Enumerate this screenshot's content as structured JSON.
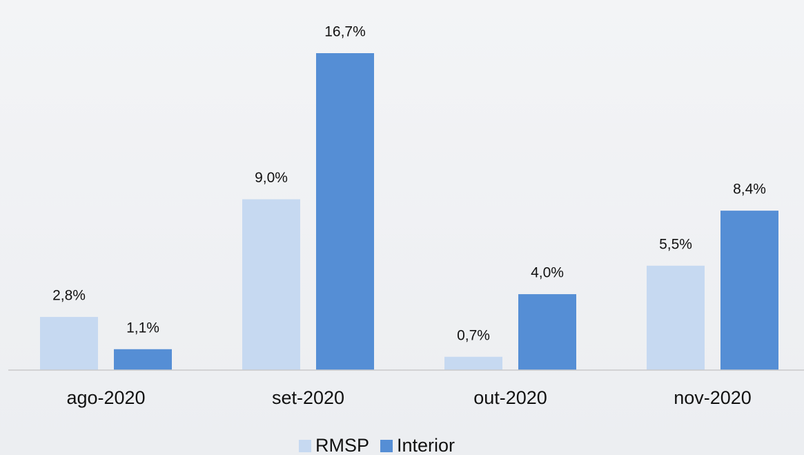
{
  "chart_data": {
    "type": "bar",
    "categories": [
      "ago-2020",
      "set-2020",
      "out-2020",
      "nov-2020"
    ],
    "series": [
      {
        "name": "RMSP",
        "color": "#c6d9f1",
        "values": [
          2.8,
          9.0,
          0.7,
          5.5
        ],
        "value_labels": [
          "2,8%",
          "9,0%",
          "0,7%",
          "5,5%"
        ]
      },
      {
        "name": "Interior",
        "color": "#558ed5",
        "values": [
          1.1,
          16.7,
          4.0,
          8.4
        ],
        "value_labels": [
          "1,1%",
          "16,7%",
          "4,0%",
          "8,4%"
        ]
      }
    ],
    "legend": "bottom"
  }
}
